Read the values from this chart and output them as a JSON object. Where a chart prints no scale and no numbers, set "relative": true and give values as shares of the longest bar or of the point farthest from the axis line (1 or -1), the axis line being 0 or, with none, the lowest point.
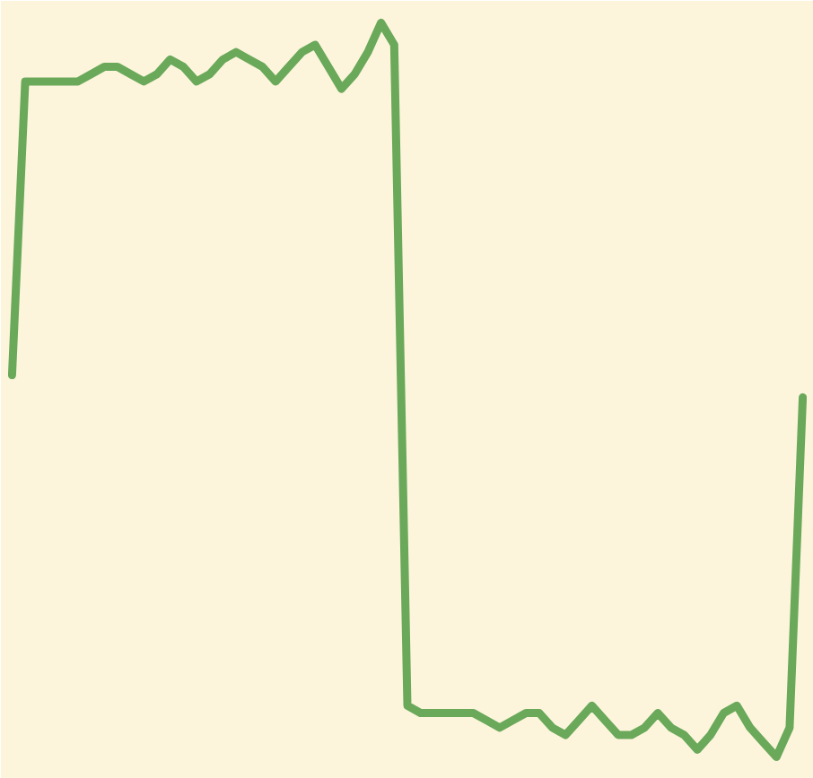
{
  "chart_data": {
    "type": "line",
    "relative": true,
    "tick_labels": false,
    "grid": false,
    "marker": "none",
    "line_style": "solid",
    "categories": [
      null,
      null,
      null,
      null,
      null,
      null,
      null,
      null,
      null,
      null,
      null,
      null,
      null,
      null,
      null,
      null,
      null,
      null,
      null,
      null,
      null,
      null,
      null,
      null,
      null,
      null,
      null,
      null,
      null,
      null,
      null,
      null,
      null,
      null,
      null,
      null,
      null,
      null,
      null,
      null,
      null,
      null,
      null,
      null,
      null,
      null,
      null,
      null,
      null,
      null,
      null,
      null,
      null,
      null,
      null,
      null,
      null,
      null,
      null,
      null,
      null
    ],
    "series": [
      {
        "color": "#6aa85a",
        "values": [
          0.52,
          0.92,
          0.92,
          0.92,
          0.92,
          0.92,
          0.93,
          0.94,
          0.94,
          0.93,
          0.92,
          0.93,
          0.95,
          0.94,
          0.92,
          0.93,
          0.95,
          0.96,
          0.95,
          0.94,
          0.92,
          0.94,
          0.96,
          0.97,
          0.94,
          0.91,
          0.93,
          0.96,
          1.0,
          0.97,
          0.07,
          0.06,
          0.06,
          0.06,
          0.06,
          0.06,
          0.05,
          0.04,
          0.05,
          0.06,
          0.06,
          0.04,
          0.03,
          0.05,
          0.07,
          0.05,
          0.03,
          0.03,
          0.04,
          0.06,
          0.04,
          0.03,
          0.01,
          0.03,
          0.06,
          0.07,
          0.04,
          0.02,
          0.0,
          0.04,
          0.49
        ]
      }
    ]
  }
}
